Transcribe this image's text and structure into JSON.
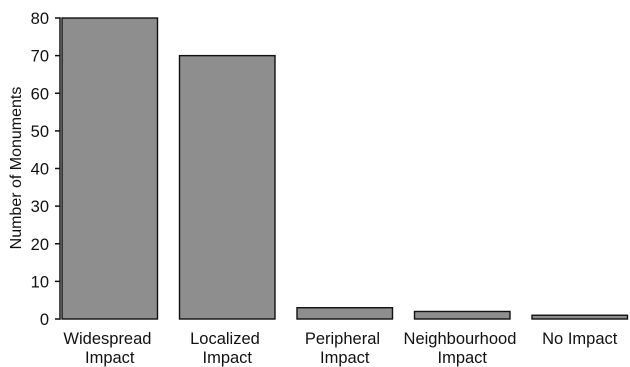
{
  "chart_data": {
    "type": "bar",
    "categories": [
      "Widespread Impact",
      "Localized Impact",
      "Peripheral Impact",
      "Neighbourhood Impact",
      "No Impact"
    ],
    "values": [
      80,
      70,
      3,
      2,
      1
    ],
    "ylabel": "Number of Monuments",
    "ylim": [
      0,
      80
    ],
    "yticks": [
      0,
      10,
      20,
      30,
      40,
      50,
      60,
      70,
      80
    ],
    "grid": false,
    "legend": "none",
    "bar_color": "#8e8e8e",
    "edge_color": "#111111"
  }
}
